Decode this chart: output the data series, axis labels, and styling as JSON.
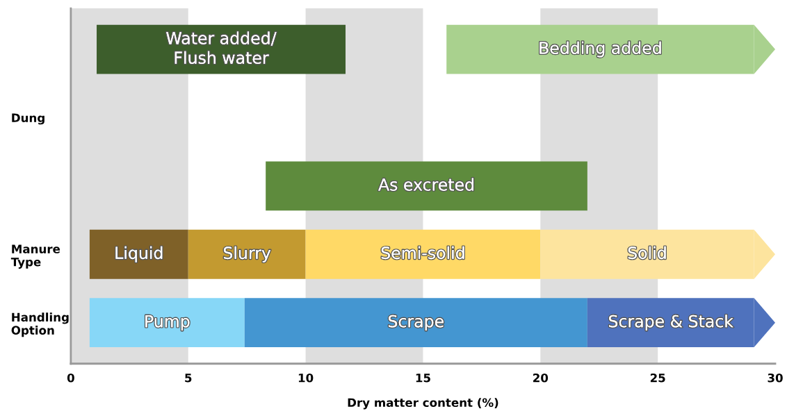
{
  "chart_data": {
    "type": "bar",
    "orientation": "horizontal",
    "xlabel": "Dry matter content (%)",
    "categories": [
      null,
      "Dung",
      null,
      "Manure\nType",
      "Handling\nOption"
    ],
    "xlim": [
      0,
      30
    ],
    "xticks": [
      0,
      5,
      10,
      15,
      20,
      25,
      30
    ],
    "bands": [
      {
        "axis": "x",
        "from": 0,
        "to": 5,
        "color": "#dedede"
      },
      {
        "axis": "x",
        "from": 10,
        "to": 15,
        "color": "#dedede"
      },
      {
        "axis": "x",
        "from": 20,
        "to": 25,
        "color": "#dedede"
      }
    ],
    "series": [
      {
        "name": "Water added/\nFlush water",
        "color": "#3d5e2c",
        "values": [
          10.6,
          null,
          null,
          null,
          null
        ],
        "base": [
          1.1,
          null,
          null,
          null,
          null
        ]
      },
      {
        "name": "Bedding added",
        "color": "#a9d18e",
        "values": [
          13.1,
          null,
          null,
          null,
          null
        ],
        "base": [
          16.0,
          null,
          null,
          null,
          null
        ]
      },
      {
        "name": "As excreted",
        "color": "#5e8b3d",
        "values": [
          null,
          null,
          13.7,
          null,
          null
        ],
        "base": [
          null,
          null,
          8.3,
          null,
          null
        ]
      },
      {
        "name": "Liquid",
        "color": "#7f6128",
        "values": [
          null,
          null,
          null,
          4.2,
          null
        ],
        "base": [
          null,
          null,
          null,
          0.8,
          null
        ]
      },
      {
        "name": "Slurry",
        "color": "#c39a30",
        "values": [
          null,
          null,
          null,
          5.0,
          null
        ],
        "base": [
          null,
          null,
          null,
          5.0,
          null
        ]
      },
      {
        "name": "Semi-solid",
        "color": "#ffd966",
        "values": [
          null,
          null,
          null,
          10.0,
          null
        ],
        "base": [
          null,
          null,
          null,
          10.0,
          null
        ]
      },
      {
        "name": "Solid",
        "color": "#fde49e",
        "values": [
          null,
          null,
          null,
          9.1,
          null
        ],
        "base": [
          null,
          null,
          null,
          20.0,
          null
        ]
      },
      {
        "name": "Pump",
        "color": "#87d7f7",
        "values": [
          null,
          null,
          null,
          null,
          6.6
        ],
        "base": [
          null,
          null,
          null,
          null,
          0.8
        ]
      },
      {
        "name": "Scrape",
        "color": "#4496d1",
        "values": [
          null,
          null,
          null,
          null,
          14.6
        ],
        "base": [
          null,
          null,
          null,
          null,
          7.4
        ]
      },
      {
        "name": "Scrape & Stack",
        "color": "#4f72bd",
        "values": [
          null,
          null,
          null,
          null,
          7.1
        ],
        "base": [
          null,
          null,
          null,
          null,
          22.0
        ]
      }
    ],
    "grid": false,
    "legend": false
  }
}
